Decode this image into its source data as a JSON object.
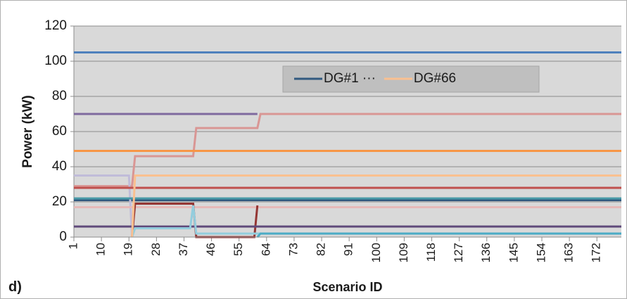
{
  "chart_data": {
    "type": "line",
    "y_label": "Power (kW)",
    "x_label": "Scenario ID",
    "panel_label": "d)",
    "xlim": [
      1,
      180
    ],
    "xticks": [
      1,
      10,
      19,
      28,
      37,
      46,
      55,
      64,
      73,
      82,
      91,
      100,
      109,
      118,
      127,
      136,
      145,
      154,
      163,
      172
    ],
    "ylim": [
      0,
      120
    ],
    "yticks": [
      0,
      20,
      40,
      60,
      80,
      100,
      120
    ],
    "grid": true,
    "legend": "top",
    "series": [
      {
        "name": "DG#1 ···",
        "color": "#31597f",
        "x": [
          1,
          180
        ],
        "values": [
          21,
          21
        ]
      },
      {
        "color": "#4f81bd",
        "x": [
          1,
          180
        ],
        "values": [
          105,
          105
        ]
      },
      {
        "color": "#7f6a9f",
        "x": [
          1,
          61
        ],
        "values": [
          70,
          70
        ]
      },
      {
        "color": "#d99694",
        "x": [
          1,
          20,
          21,
          40,
          41,
          61,
          62,
          180
        ],
        "values": [
          29,
          29,
          46,
          46,
          62,
          62,
          70,
          70
        ]
      },
      {
        "color": "#f79646",
        "x": [
          1,
          180
        ],
        "values": [
          49,
          49
        ]
      },
      {
        "color": "#c0bcd9",
        "x": [
          1,
          19,
          20
        ],
        "values": [
          35,
          35,
          0
        ]
      },
      {
        "color": "#c0504d",
        "x": [
          1,
          180
        ],
        "values": [
          28,
          28
        ]
      },
      {
        "color": "#4a9aa8",
        "x": [
          1,
          180
        ],
        "values": [
          22,
          22
        ]
      },
      {
        "color": "#e6b9b8",
        "x": [
          1,
          180
        ],
        "values": [
          17,
          17
        ]
      },
      {
        "color": "#943634",
        "x": [
          20,
          21,
          40,
          41,
          60,
          61
        ],
        "values": [
          0,
          19,
          19,
          0,
          0,
          18
        ]
      },
      {
        "color": "#604a7b",
        "x": [
          1,
          180
        ],
        "values": [
          6,
          6
        ]
      },
      {
        "color": "#93cddd",
        "x": [
          20,
          21,
          39,
          40,
          41,
          180
        ],
        "values": [
          0,
          5,
          5,
          18,
          2,
          2
        ]
      },
      {
        "color": "#4bacc6",
        "x": [
          61,
          62,
          180
        ],
        "values": [
          0,
          2,
          2
        ]
      },
      {
        "name": "DG#66",
        "color": "#fac090",
        "x": [
          20,
          21,
          180
        ],
        "values": [
          0,
          35,
          35
        ]
      }
    ]
  }
}
